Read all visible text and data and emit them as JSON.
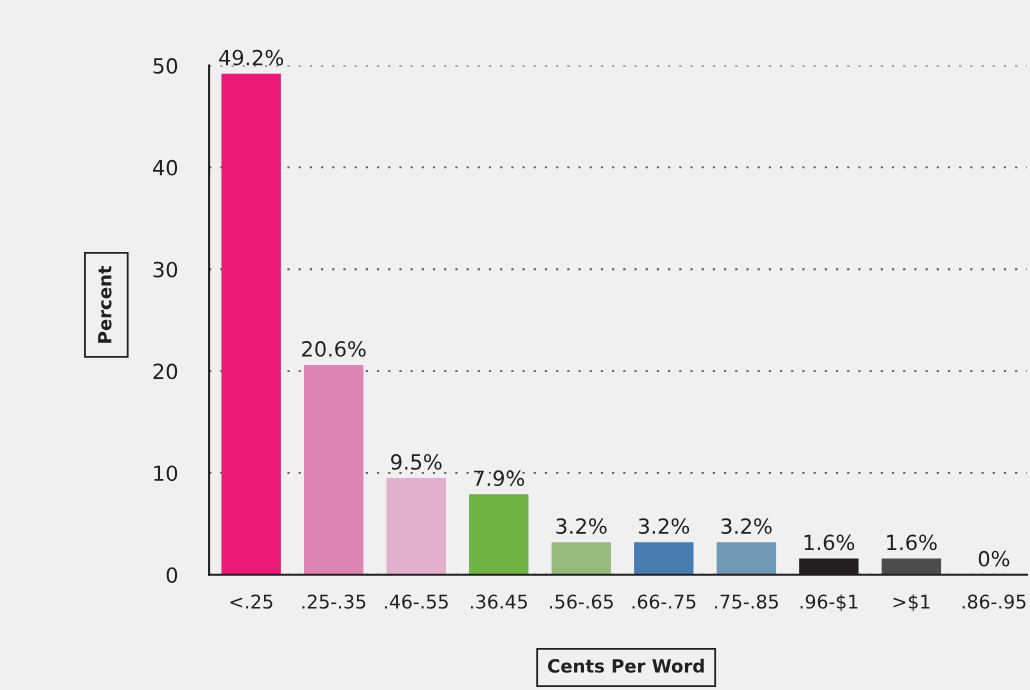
{
  "chart_data": {
    "type": "bar",
    "xlabel": "Cents Per Word",
    "ylabel": "Percent",
    "categories": [
      "<.25",
      ".25-.35",
      ".46-.55",
      ".36.45",
      ".56-.65",
      ".66-.75",
      ".75-.85",
      ".96-$1",
      ">$1",
      ".86-.95"
    ],
    "values": [
      49.2,
      20.6,
      9.5,
      7.9,
      3.2,
      3.2,
      3.2,
      1.6,
      1.6,
      0
    ],
    "value_labels": [
      "49.2%",
      "20.6%",
      "9.5%",
      "7.9%",
      "3.2%",
      "3.2%",
      "3.2%",
      "1.6%",
      "1.6%",
      "0%"
    ],
    "colors": [
      "#ed1a78",
      "#de84b5",
      "#e2afcc",
      "#6fb344",
      "#98bb7d",
      "#487cb1",
      "#6f98b7",
      "#231f20",
      "#4b4d4d",
      "#6d6e70"
    ],
    "ylim": [
      0,
      50
    ],
    "yticks": [
      0,
      10,
      20,
      30,
      40,
      50
    ],
    "grid": "y"
  }
}
